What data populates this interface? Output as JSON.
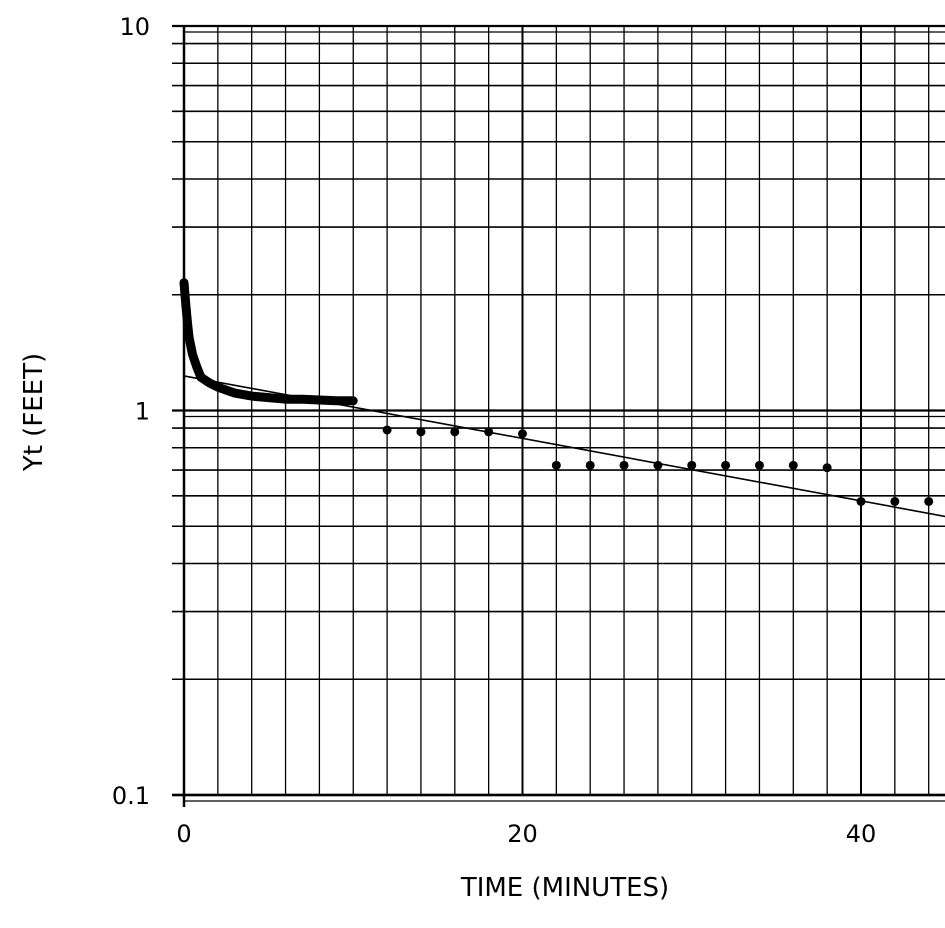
{
  "chart_data": {
    "type": "scatter",
    "title": "",
    "xlabel": "TIME (MINUTES)",
    "ylabel": "Yt (FEET)",
    "x_scale": "linear",
    "y_scale": "log",
    "xlim": [
      0,
      45
    ],
    "ylim": [
      0.1,
      10
    ],
    "grid": true,
    "x_ticks": [
      "0",
      "20",
      "40"
    ],
    "y_ticks": [
      "0.1",
      "1",
      "10"
    ],
    "series": [
      {
        "style": "thick-line",
        "x": [
          0,
          0.1,
          0.2,
          0.3,
          0.5,
          0.75,
          1,
          1.5,
          2,
          2.5,
          3,
          4,
          5,
          6,
          7,
          8,
          9,
          10
        ],
        "y": [
          2.15,
          1.9,
          1.7,
          1.55,
          1.4,
          1.3,
          1.22,
          1.18,
          1.15,
          1.13,
          1.11,
          1.09,
          1.08,
          1.07,
          1.07,
          1.065,
          1.06,
          1.06
        ]
      },
      {
        "style": "points",
        "x": [
          12,
          14,
          16,
          18,
          20,
          22,
          24,
          26,
          28,
          30,
          32,
          34,
          36,
          38,
          40,
          42,
          44
        ],
        "y": [
          0.89,
          0.88,
          0.88,
          0.88,
          0.87,
          0.72,
          0.72,
          0.72,
          0.72,
          0.72,
          0.72,
          0.72,
          0.72,
          0.71,
          0.58,
          0.58,
          0.58
        ]
      },
      {
        "style": "fit-line",
        "x": [
          0,
          45
        ],
        "y": [
          1.23,
          0.53
        ]
      }
    ]
  }
}
